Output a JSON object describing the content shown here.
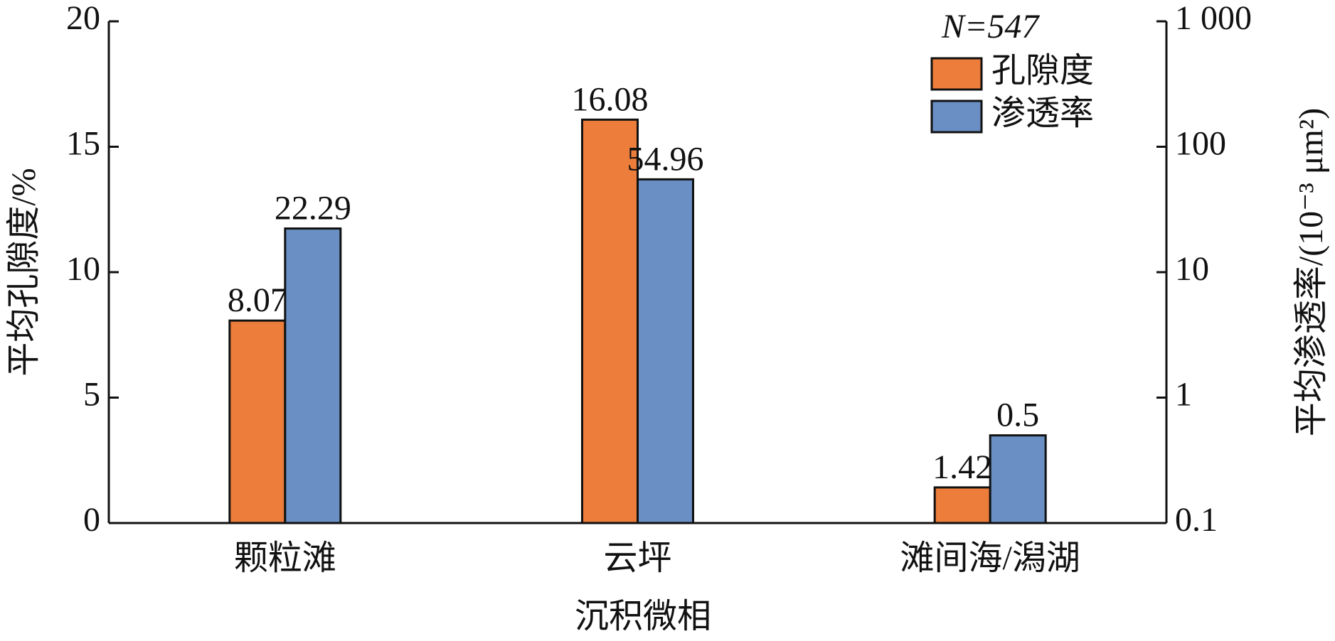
{
  "chart_data": {
    "type": "bar",
    "xlabel": "沉积微相",
    "ylabel": "平均孔隙度/%",
    "y2label": "平均渗透率/(10⁻³ μm²)",
    "legend_title": "N=547",
    "categories": [
      "颗粒滩",
      "云坪",
      "滩间海/潟湖"
    ],
    "series": [
      {
        "name": "孔隙度",
        "color": "#ED7D3A",
        "values": [
          8.07,
          16.08,
          1.42
        ]
      },
      {
        "name": "渗透率",
        "color": "#6A8FC4",
        "values": [
          22.29,
          54.96,
          0.5
        ],
        "axis": "y2"
      }
    ],
    "ylim": [
      0,
      20
    ],
    "yticks": [
      0,
      5,
      10,
      15,
      20
    ],
    "y2lim": [
      0.1,
      1000
    ],
    "y2scale": "log",
    "y2ticks": [
      0.1,
      1,
      10,
      100,
      {
        "value": 1000,
        "label": "1 000"
      }
    ],
    "legend": "upper right"
  }
}
